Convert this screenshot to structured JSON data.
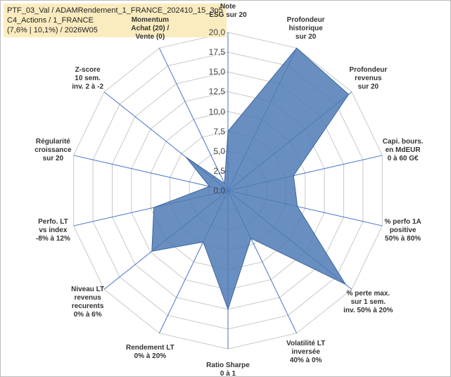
{
  "chart_data": {
    "type": "radar",
    "title": "PTF_03_Val / ADAMRendement_1_FRANCE_202410_15_3p5\nC4_Actions / 1_FRANCE\n(7,6% | 10,1%) / 2026W05",
    "categories": [
      "Note\nESG sur 20",
      "Profondeur\nhistorique\nsur 20",
      "Profondeur\nrevenus\nsur 20",
      "Capi. bours.\nen MdEUR\n0 à 60 G€",
      "% perfo 1A\npositive\n50% à 80%",
      "% perte max.\nsur 1 sem.\ninv. 50% à 20%",
      "Volatilité LT\ninversée\n40% à 0%",
      "Ratio Sharpe\n0 à 1",
      "Rendement LT\n0% à 20%",
      "Niveau LT\nrevenus\nrecurents\n0% à 6%",
      "Perfo. LT\nvs index\n-8% à 12%",
      "Régularité\ncroissance\nsur 20",
      "Z-score\n10 sem.\ninv. 2 à -2",
      "Momentum\nAchat (20) /\nVente (0)"
    ],
    "values": [
      7.5,
      20,
      19.5,
      8.5,
      9,
      19,
      6.7,
      15,
      7.2,
      12.3,
      9.6,
      2.4,
      6.8,
      1
    ],
    "color": "#4f7bb5",
    "ylim": [
      0,
      20
    ],
    "yticks": [
      {
        "value": 0,
        "label": "0,0"
      },
      {
        "value": 2.5,
        "label": "2,5"
      },
      {
        "value": 5,
        "label": "5,0"
      },
      {
        "value": 7.5,
        "label": "7,5"
      },
      {
        "value": 10,
        "label": "10,0"
      },
      {
        "value": 12.5,
        "label": "12,5"
      },
      {
        "value": 15,
        "label": "15,0"
      },
      {
        "value": 17.5,
        "label": "17,5"
      },
      {
        "value": 20,
        "label": "20,0"
      }
    ],
    "grid": true
  }
}
